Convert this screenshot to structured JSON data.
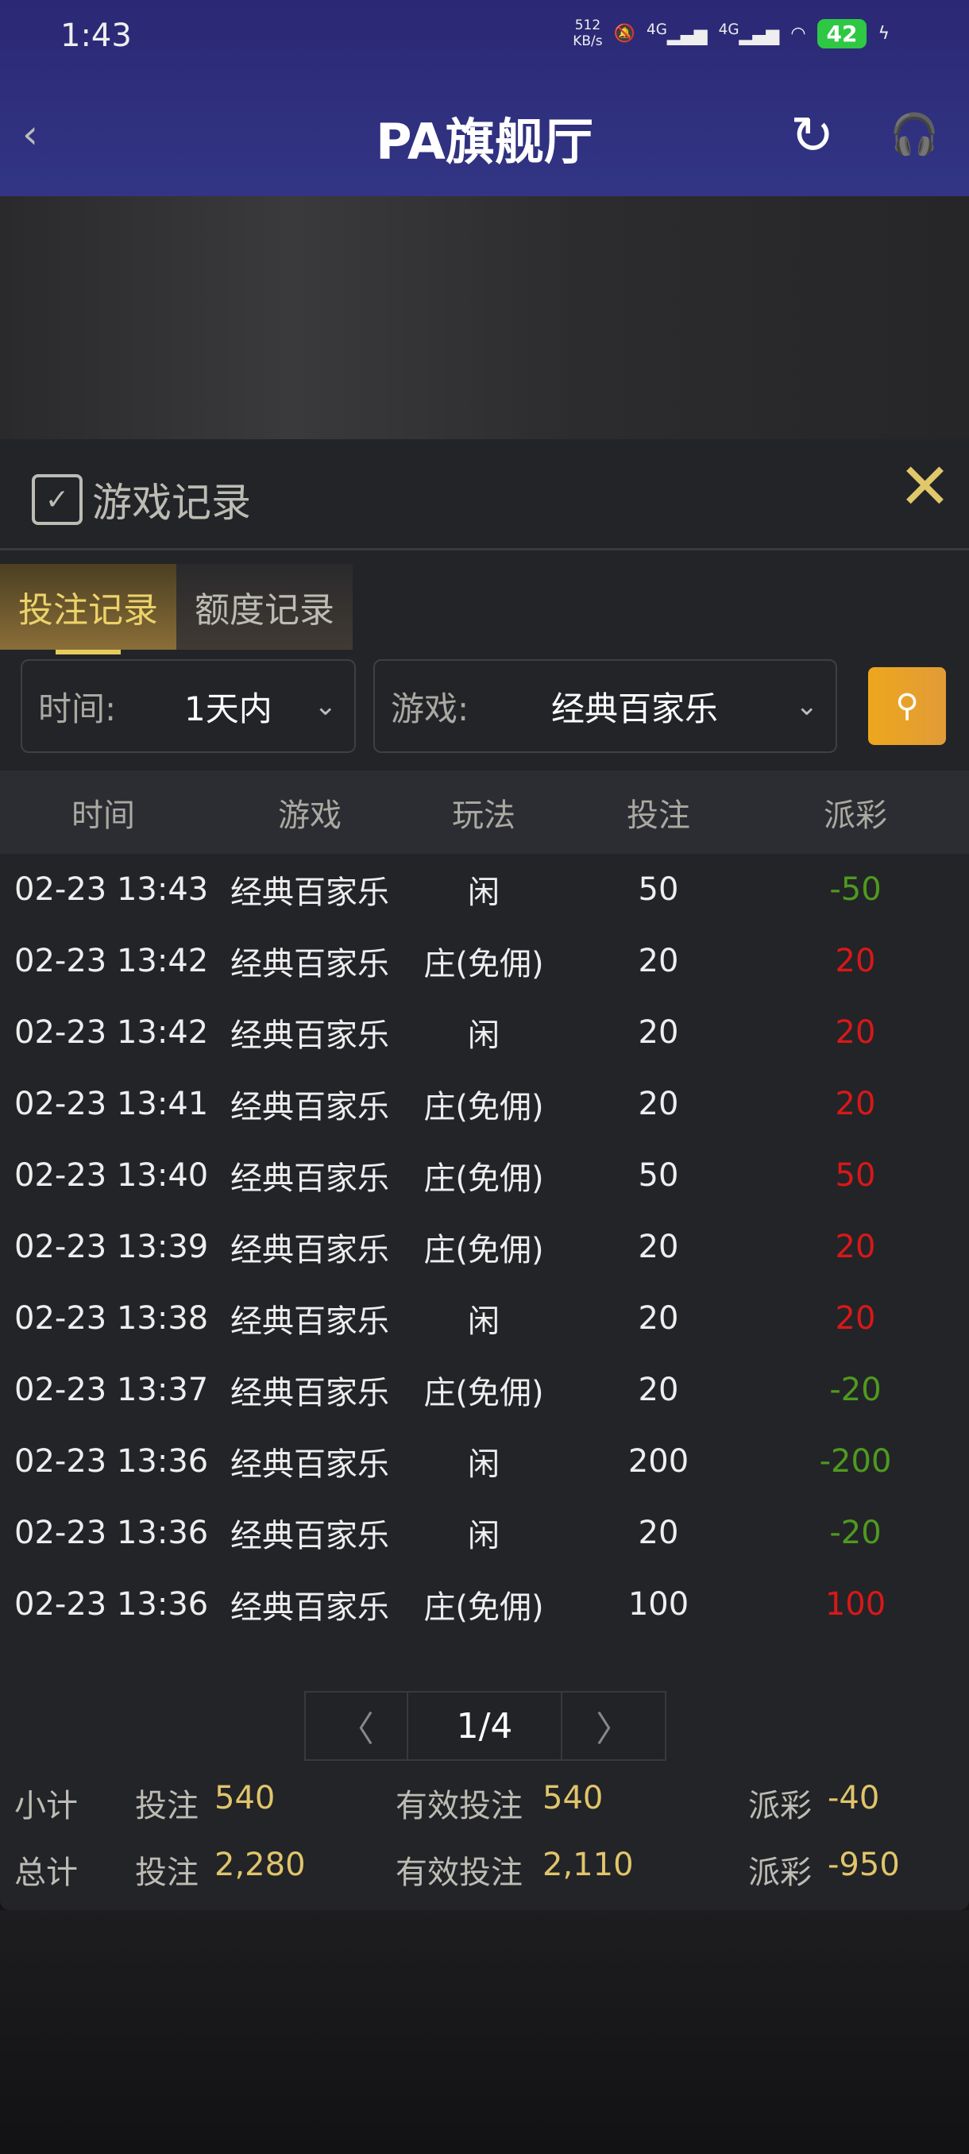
{
  "status_bar": {
    "time": "1:43",
    "speed": "512",
    "speed_unit": "KB/s",
    "net1": "4G",
    "net2": "4G",
    "battery": "42"
  },
  "header": {
    "title": "PA旗舰厅"
  },
  "panel": {
    "title": "游戏记录",
    "tabs": [
      {
        "label": "投注记录",
        "active": true
      },
      {
        "label": "额度记录",
        "active": false
      }
    ],
    "filters": {
      "time_label": "时间:",
      "time_value": "1天内",
      "game_label": "游戏:",
      "game_value": "经典百家乐"
    },
    "columns": [
      "时间",
      "游戏",
      "玩法",
      "投注",
      "派彩"
    ],
    "rows": [
      [
        "02-23 13:43",
        "经典百家乐",
        "闲",
        "50",
        "-50"
      ],
      [
        "02-23 13:42",
        "经典百家乐",
        "庄(免佣)",
        "20",
        "20"
      ],
      [
        "02-23 13:42",
        "经典百家乐",
        "闲",
        "20",
        "20"
      ],
      [
        "02-23 13:41",
        "经典百家乐",
        "庄(免佣)",
        "20",
        "20"
      ],
      [
        "02-23 13:40",
        "经典百家乐",
        "庄(免佣)",
        "50",
        "50"
      ],
      [
        "02-23 13:39",
        "经典百家乐",
        "庄(免佣)",
        "20",
        "20"
      ],
      [
        "02-23 13:38",
        "经典百家乐",
        "闲",
        "20",
        "20"
      ],
      [
        "02-23 13:37",
        "经典百家乐",
        "庄(免佣)",
        "20",
        "-20"
      ],
      [
        "02-23 13:36",
        "经典百家乐",
        "闲",
        "200",
        "-200"
      ],
      [
        "02-23 13:36",
        "经典百家乐",
        "闲",
        "20",
        "-20"
      ],
      [
        "02-23 13:36",
        "经典百家乐",
        "庄(免佣)",
        "100",
        "100"
      ]
    ],
    "pagination": {
      "page": "1/4"
    },
    "summary": [
      {
        "label": "小计",
        "bet_label": "投注",
        "bet": "540",
        "valid_label": "有效投注",
        "valid": "540",
        "payout_label": "派彩",
        "payout": "-40"
      },
      {
        "label": "总计",
        "bet_label": "投注",
        "bet": "2,280",
        "valid_label": "有效投注",
        "valid": "2,110",
        "payout_label": "派彩",
        "payout": "-950"
      }
    ]
  },
  "colors": {
    "header": "#2b2874",
    "accent": "#e0c56a",
    "win": "#d81818",
    "loss": "#4e9a1e",
    "search": "#eda71d"
  }
}
